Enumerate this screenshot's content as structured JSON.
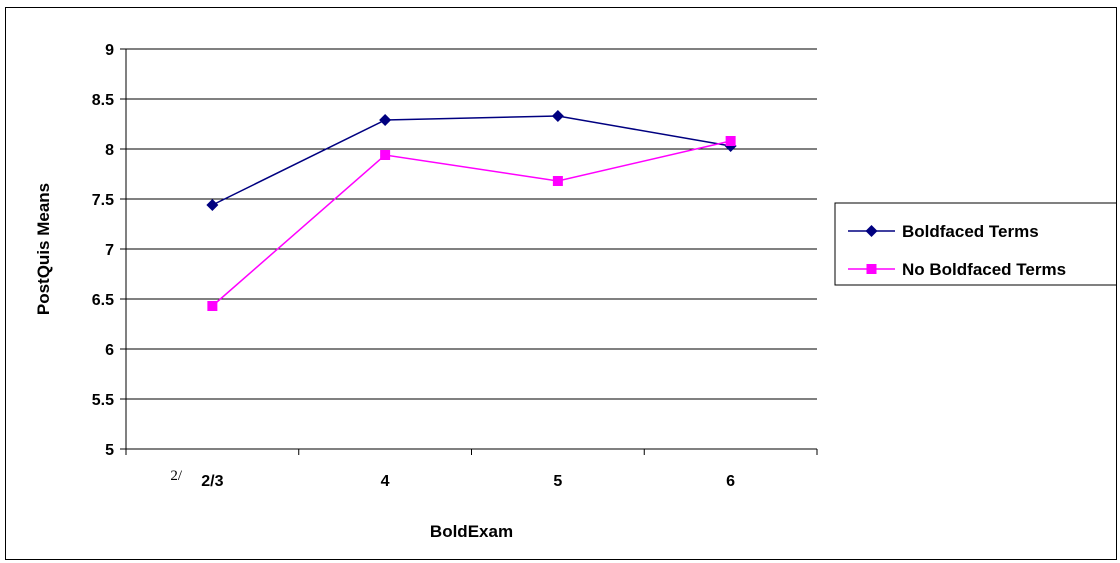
{
  "chart_data": {
    "type": "line",
    "title": "",
    "xlabel": "BoldExam",
    "ylabel": "PostQuis Means",
    "categories": [
      "2/3",
      "4",
      "5",
      "6"
    ],
    "ylim": [
      5,
      9
    ],
    "yticks": [
      "5",
      "5.5",
      "6",
      "6.5",
      "7",
      "7.5",
      "8",
      "8.5",
      "9"
    ],
    "grid": true,
    "legend_position": "right",
    "footnote_mark": "2/",
    "series": [
      {
        "name": "Boldfaced Terms",
        "values": [
          7.44,
          8.29,
          8.33,
          8.03
        ],
        "color": "#000080",
        "marker": "diamond"
      },
      {
        "name": "No Boldfaced Terms",
        "values": [
          6.43,
          7.94,
          7.68,
          8.08
        ],
        "color": "#FF00FF",
        "marker": "square"
      }
    ]
  }
}
